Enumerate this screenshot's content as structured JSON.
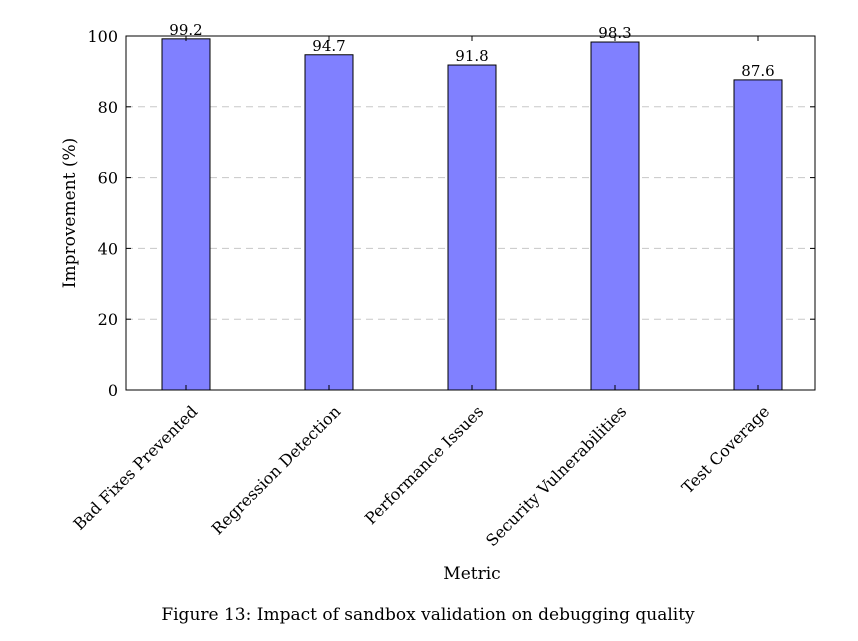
{
  "chart_data": {
    "type": "bar",
    "categories": [
      "Bad Fixes Prevented",
      "Regression Detection",
      "Performance Issues",
      "Security Vulnerabilities",
      "Test Coverage"
    ],
    "values": [
      99.2,
      94.7,
      91.8,
      98.3,
      87.6
    ],
    "value_labels": [
      "99.2",
      "94.7",
      "91.8",
      "98.3",
      "87.6"
    ],
    "xlabel": "Metric",
    "ylabel": "Improvement (%)",
    "ylim": [
      0,
      100
    ],
    "yticks": [
      0,
      20,
      40,
      60,
      80,
      100
    ],
    "grid": true,
    "bar_color": "#8080ff"
  },
  "caption": "Figure 13: Impact of sandbox validation on debugging quality"
}
